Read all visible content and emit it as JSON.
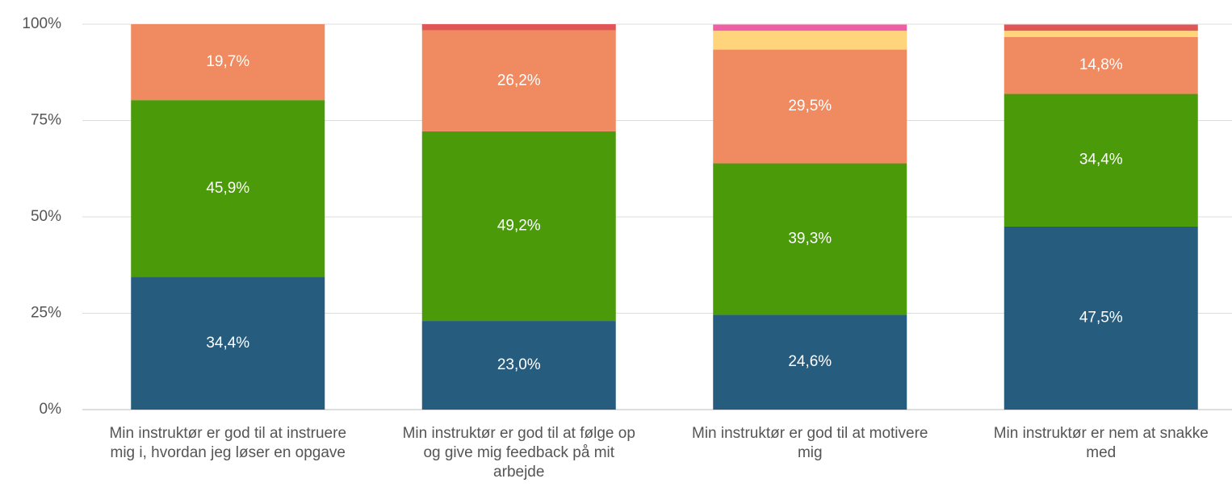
{
  "chart_data": {
    "type": "stacked_bar",
    "categories": [
      "Min instruktør er god til at instruere mig i, hvordan jeg løser en opgave",
      "Min instruktør er god til at følge op og give mig feedback på mit arbejde",
      "Min instruktør er god til at motivere mig",
      "Min instruktør er nem at snakke med"
    ],
    "series": [
      {
        "color": "#265c7e",
        "values": [
          34.4,
          23.0,
          24.6,
          47.5
        ],
        "value_labels": [
          "34,4%",
          "23,0%",
          "24,6%",
          "47,5%"
        ]
      },
      {
        "color": "#4a9a0a",
        "values": [
          45.9,
          49.2,
          39.3,
          34.4
        ],
        "value_labels": [
          "45,9%",
          "49,2%",
          "39,3%",
          "34,4%"
        ]
      },
      {
        "color": "#f08a60",
        "values": [
          19.7,
          26.2,
          29.5,
          14.8
        ],
        "value_labels": [
          "19,7%",
          "26,2%",
          "29,5%",
          "14,8%"
        ]
      },
      {
        "color": "#ffd47a",
        "values": [
          0,
          0,
          4.9,
          1.6
        ],
        "value_labels": [
          null,
          null,
          null,
          null
        ]
      },
      {
        "color": "#ee5fa7",
        "values": [
          0,
          0,
          1.6,
          0
        ],
        "value_labels": [
          null,
          null,
          null,
          null
        ]
      },
      {
        "color": "#e05555",
        "values": [
          0,
          1.6,
          0,
          1.6
        ],
        "value_labels": [
          null,
          null,
          null,
          null
        ]
      }
    ],
    "ylim": [
      0,
      100
    ],
    "yticks": [
      {
        "value": 0,
        "label": "0%"
      },
      {
        "value": 25,
        "label": "25%"
      },
      {
        "value": 50,
        "label": "50%"
      },
      {
        "value": 75,
        "label": "75%"
      },
      {
        "value": 100,
        "label": "100%"
      }
    ],
    "grid": true
  }
}
